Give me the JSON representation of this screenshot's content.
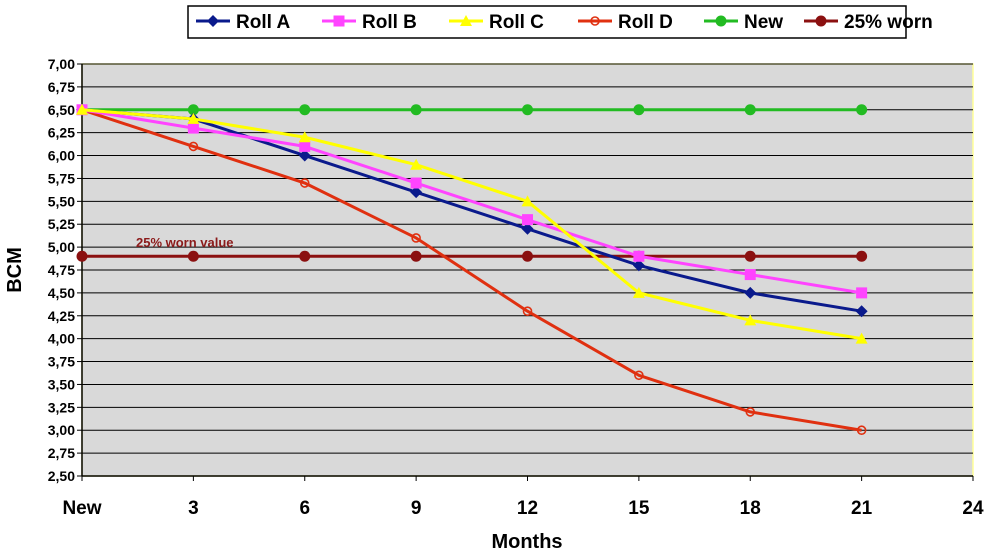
{
  "chart_data": {
    "type": "line",
    "x_tick_labels": [
      "New",
      "3",
      "6",
      "9",
      "12",
      "15",
      "18",
      "21",
      "24"
    ],
    "x": [
      0,
      3,
      6,
      9,
      12,
      15,
      18,
      21
    ],
    "xlim": [
      0,
      24
    ],
    "ylim": [
      2.5,
      7.0
    ],
    "y_tick_labels": [
      "2,50",
      "2,75",
      "3,00",
      "3,25",
      "3,50",
      "3,75",
      "4,00",
      "4,25",
      "4,50",
      "4,75",
      "5,00",
      "5,25",
      "5,50",
      "5,75",
      "6,00",
      "6,25",
      "6,50",
      "6,75",
      "7,00"
    ],
    "xlabel": "Months",
    "ylabel": "BCM",
    "grid": "horizontal",
    "legend_position": "top",
    "annotation": "25% worn value",
    "series": [
      {
        "name": "Roll A",
        "color": "#0a1a8c",
        "marker": "diamond",
        "values": [
          6.5,
          6.4,
          6.0,
          5.6,
          5.2,
          4.8,
          4.5,
          4.3
        ]
      },
      {
        "name": "Roll B",
        "color": "#ff44ff",
        "marker": "square",
        "values": [
          6.5,
          6.3,
          6.1,
          5.7,
          5.3,
          4.9,
          4.7,
          4.5
        ]
      },
      {
        "name": "Roll C",
        "color": "#ffff00",
        "marker": "triangle",
        "values": [
          6.5,
          6.4,
          6.2,
          5.9,
          5.5,
          4.5,
          4.2,
          4.0
        ]
      },
      {
        "name": "Roll D",
        "color": "#e03010",
        "marker": "small-circle",
        "values": [
          6.5,
          6.1,
          5.7,
          5.1,
          4.3,
          3.6,
          3.2,
          3.0
        ]
      },
      {
        "name": "New",
        "color": "#22bb22",
        "marker": "circle",
        "values": [
          6.5,
          6.5,
          6.5,
          6.5,
          6.5,
          6.5,
          6.5,
          6.5
        ]
      },
      {
        "name": "25% worn",
        "color": "#8b1010",
        "marker": "circle",
        "values": [
          4.9,
          4.9,
          4.9,
          4.9,
          4.9,
          4.9,
          4.9,
          4.9
        ]
      }
    ],
    "colors": {
      "plot_background": "#d9d9d9",
      "plot_border": "#ffff99",
      "gridline": "#000000"
    }
  }
}
